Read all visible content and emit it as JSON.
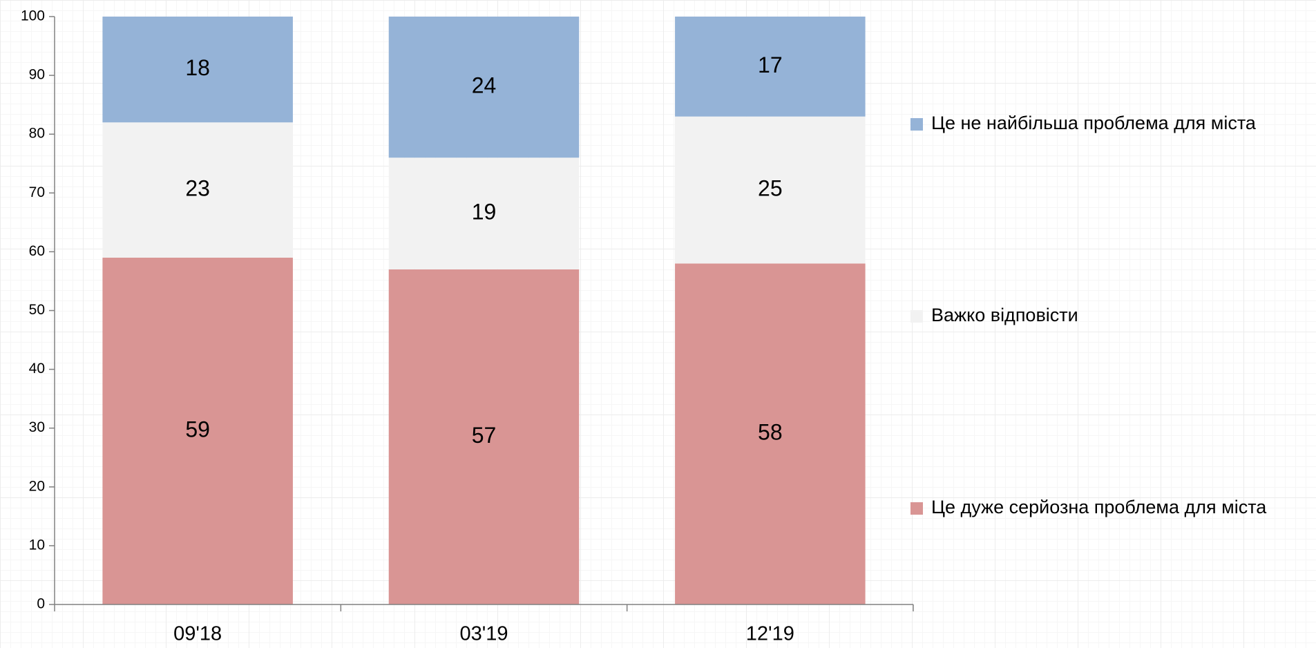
{
  "chart_data": {
    "type": "stacked_bar",
    "categories": [
      "09'18",
      "03'19",
      "12'19"
    ],
    "series": [
      {
        "name": "Це дуже серйозна проблема для міста",
        "color": "#d99594",
        "values": [
          59,
          57,
          58
        ]
      },
      {
        "name": "Важко відповісти",
        "color": "#f2f2f2",
        "values": [
          23,
          19,
          25
        ]
      },
      {
        "name": "Це не найбільша проблема для міста",
        "color": "#95b3d7",
        "values": [
          18,
          24,
          17
        ]
      }
    ],
    "ylim": [
      0,
      100
    ],
    "yticks": [
      0,
      10,
      20,
      30,
      40,
      50,
      60,
      70,
      80,
      90,
      100
    ],
    "legend": "right"
  }
}
